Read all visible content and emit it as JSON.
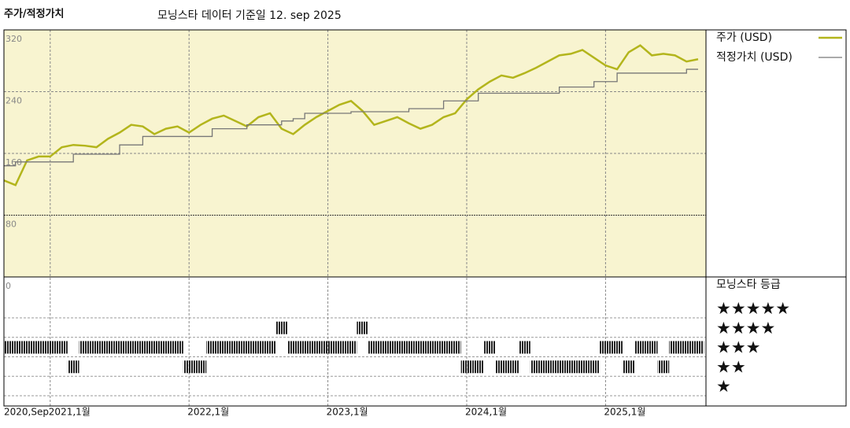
{
  "chart_data": {
    "type": "line",
    "title": "주가/적정가치",
    "subtitle": "모닝스타 데이터 기준일 12. sep 2025",
    "x": [
      "2020-09",
      "2020-10",
      "2020-11",
      "2020-12",
      "2021-01",
      "2021-02",
      "2021-03",
      "2021-04",
      "2021-05",
      "2021-06",
      "2021-07",
      "2021-08",
      "2021-09",
      "2021-10",
      "2021-11",
      "2021-12",
      "2022-01",
      "2022-02",
      "2022-03",
      "2022-04",
      "2022-05",
      "2022-06",
      "2022-07",
      "2022-08",
      "2022-09",
      "2022-10",
      "2022-11",
      "2022-12",
      "2023-01",
      "2023-02",
      "2023-03",
      "2023-04",
      "2023-05",
      "2023-06",
      "2023-07",
      "2023-08",
      "2023-09",
      "2023-10",
      "2023-11",
      "2023-12",
      "2024-01",
      "2024-02",
      "2024-03",
      "2024-04",
      "2024-05",
      "2024-06",
      "2024-07",
      "2024-08",
      "2024-09",
      "2024-10",
      "2024-11",
      "2024-12",
      "2025-01",
      "2025-02",
      "2025-03",
      "2025-04",
      "2025-05",
      "2025-06",
      "2025-07",
      "2025-08",
      "2025-09"
    ],
    "series": [
      {
        "name": "주가 (USD)",
        "color": "#b3b51c",
        "values": [
          125,
          119,
          151,
          156,
          156,
          168,
          171,
          170,
          168,
          179,
          187,
          197,
          195,
          185,
          192,
          195,
          187,
          197,
          205,
          209,
          202,
          195,
          207,
          212,
          192,
          185,
          197,
          207,
          215,
          223,
          228,
          215,
          197,
          202,
          207,
          199,
          192,
          197,
          207,
          212,
          230,
          243,
          253,
          261,
          258,
          264,
          271,
          279,
          287,
          289,
          294,
          284,
          274,
          269,
          291,
          300,
          287,
          289,
          287,
          279,
          282
        ]
      },
      {
        "name": "적정가치 (USD)",
        "color": "#777777",
        "step": true,
        "values": [
          144,
          149,
          149,
          149,
          149,
          149,
          159,
          159,
          159,
          159,
          171,
          171,
          182,
          182,
          182,
          182,
          182,
          182,
          192,
          192,
          192,
          197,
          197,
          197,
          202,
          205,
          212,
          212,
          212,
          212,
          214,
          214,
          214,
          214,
          214,
          218,
          218,
          218,
          228,
          228,
          228,
          238,
          238,
          238,
          238,
          238,
          238,
          238,
          246,
          246,
          246,
          253,
          253,
          264,
          264,
          264,
          264,
          264,
          264,
          269,
          269
        ]
      }
    ],
    "ylim": [
      0,
      320
    ],
    "yticks": [
      0,
      80,
      160,
      240,
      320
    ],
    "xticks": [
      {
        "value": "2020-09",
        "label": "2020,Sep"
      },
      {
        "value": "2021-01",
        "label": "2021,1월"
      },
      {
        "value": "2022-01",
        "label": "2022,1월"
      },
      {
        "value": "2023-01",
        "label": "2023,1월"
      },
      {
        "value": "2024-01",
        "label": "2024,1월"
      },
      {
        "value": "2025-01",
        "label": "2025,1월"
      }
    ],
    "grid": true,
    "background": "#f8f4d0",
    "ratings": {
      "title": "모닝스타 등급",
      "labels": [
        "★",
        "★★",
        "★★★",
        "★★★★",
        "★★★★★"
      ],
      "values": [
        3,
        3,
        3,
        3,
        3,
        3,
        2,
        3,
        3,
        3,
        3,
        3,
        3,
        3,
        3,
        3,
        2,
        2,
        3,
        3,
        3,
        3,
        3,
        3,
        4,
        3,
        3,
        3,
        3,
        3,
        3,
        4,
        3,
        3,
        3,
        3,
        3,
        3,
        3,
        3,
        2,
        2,
        3,
        2,
        2,
        3,
        2,
        2,
        2,
        2,
        2,
        2,
        3,
        3,
        2,
        3,
        3,
        2,
        3,
        3,
        3
      ]
    }
  }
}
